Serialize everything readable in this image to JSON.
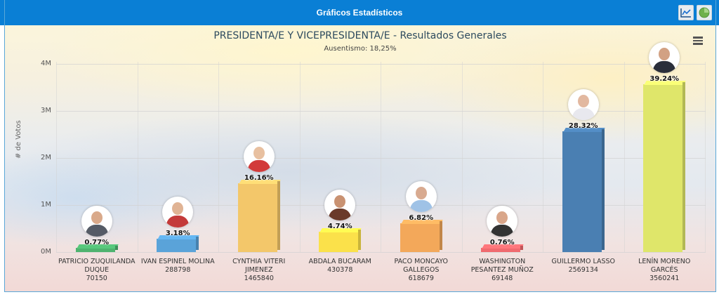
{
  "header": {
    "title": "Gráficos Estadísticos",
    "buttons": [
      {
        "icon": "line-chart-icon"
      },
      {
        "icon": "pie-chart-icon"
      }
    ]
  },
  "chart": {
    "title": "PRESIDENTA/E Y VICEPRESIDENTA/E - Resultados Generales",
    "subtitle": "Ausentismo: 18,25%",
    "menu_icon": "hamburger-menu-icon",
    "y_axis_label": "# de Votos",
    "y_ticks": [
      "0M",
      "1M",
      "2M",
      "3M",
      "4M"
    ]
  },
  "chart_data": {
    "type": "bar",
    "title": "PRESIDENTA/E Y VICEPRESIDENTA/E - Resultados Generales",
    "subtitle": "Ausentismo: 18,25%",
    "xlabel": "",
    "ylabel": "# de Votos",
    "ylim": [
      0,
      4000000
    ],
    "grid": true,
    "legend": "none",
    "categories": [
      "PATRICIO ZUQUILANDA DUQUE",
      "IVAN ESPINEL MOLINA",
      "CYNTHIA VITERI JIMENEZ",
      "ABDALA BUCARAM",
      "PACO MONCAYO GALLEGOS",
      "WASHINGTON PESANTEZ MUÑOZ",
      "GUILLERMO LASSO",
      "LENÍN MORENO GARCÉS"
    ],
    "values": [
      70150,
      288798,
      1465840,
      430378,
      618679,
      69148,
      2569134,
      3560241
    ],
    "percentages": [
      "0.77%",
      "3.18%",
      "16.16%",
      "4.74%",
      "6.82%",
      "0.76%",
      "28.32%",
      "39.24%"
    ],
    "colors": [
      "#4fb36f",
      "#5aa3d9",
      "#f3c76a",
      "#fbe14a",
      "#f3a85a",
      "#f06a6f",
      "#4a7fb2",
      "#dfe66a"
    ]
  },
  "bars": [
    {
      "name_line1": "PATRICIO ZUQUILANDA",
      "name_line2": "DUQUE",
      "votes": "70150",
      "pct": "0.77%",
      "color": "#4fb36f"
    },
    {
      "name_line1": "IVAN ESPINEL MOLINA",
      "name_line2": "",
      "votes": "288798",
      "pct": "3.18%",
      "color": "#5aa3d9"
    },
    {
      "name_line1": "CYNTHIA VITERI",
      "name_line2": "JIMENEZ",
      "votes": "1465840",
      "pct": "16.16%",
      "color": "#f3c76a"
    },
    {
      "name_line1": "ABDALA BUCARAM",
      "name_line2": "",
      "votes": "430378",
      "pct": "4.74%",
      "color": "#fbe14a"
    },
    {
      "name_line1": "PACO MONCAYO",
      "name_line2": "GALLEGOS",
      "votes": "618679",
      "pct": "6.82%",
      "color": "#f3a85a"
    },
    {
      "name_line1": "WASHINGTON",
      "name_line2": "PESANTEZ MUÑOZ",
      "votes": "69148",
      "pct": "0.76%",
      "color": "#f06a6f"
    },
    {
      "name_line1": "GUILLERMO LASSO",
      "name_line2": "",
      "votes": "2569134",
      "pct": "28.32%",
      "color": "#4a7fb2"
    },
    {
      "name_line1": "LENÍN MORENO",
      "name_line2": "GARCÉS",
      "votes": "3560241",
      "pct": "39.24%",
      "color": "#dfe66a"
    }
  ]
}
